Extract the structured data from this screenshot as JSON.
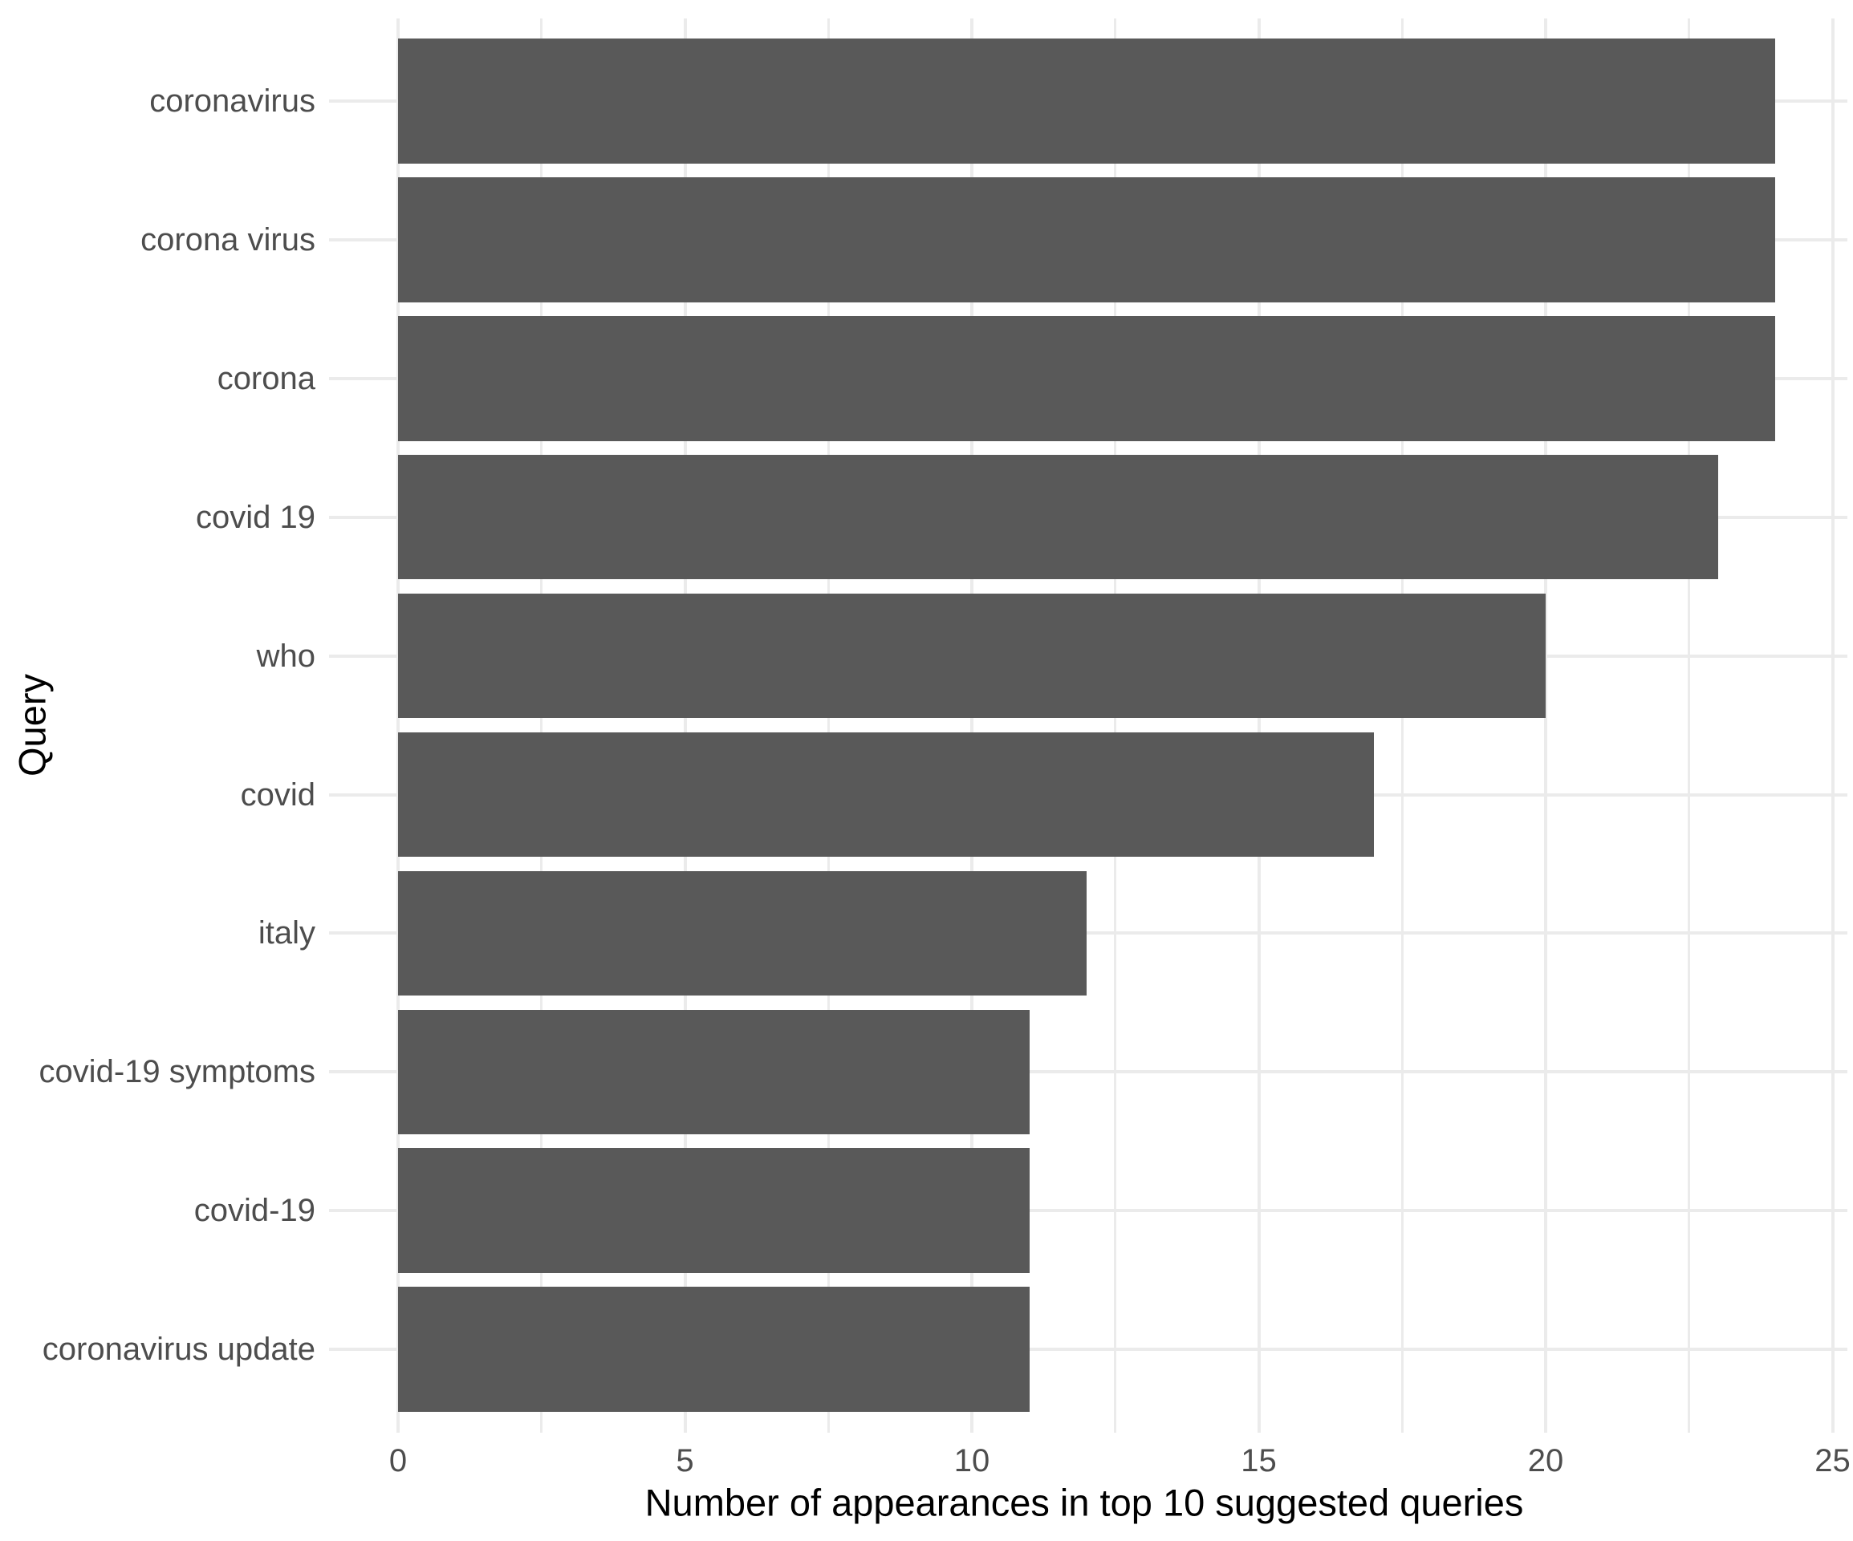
{
  "chart_data": {
    "type": "bar",
    "orientation": "horizontal",
    "title": "",
    "xlabel": "Number of appearances in top 10 suggested queries",
    "ylabel": "Query",
    "categories": [
      "coronavirus",
      "corona virus",
      "corona",
      "covid 19",
      "who",
      "covid",
      "italy",
      "covid-19 symptoms",
      "covid-19",
      "coronavirus update"
    ],
    "values": [
      24,
      24,
      24,
      23,
      20,
      17,
      12,
      11,
      11,
      11
    ],
    "x_ticks": [
      0,
      5,
      10,
      15,
      20,
      25
    ],
    "x_minor_ticks": [
      2.5,
      7.5,
      12.5,
      17.5,
      22.5
    ],
    "xlim": [
      0,
      25
    ],
    "grid": "vertical major+minor, horizontal major at category centers",
    "legend_position": "none",
    "colors": {
      "bar": "#595959",
      "grid": "#EBEBEB",
      "tick_label": "#4D4D4D",
      "axis_title": "#000000",
      "background": "#FFFFFF"
    }
  }
}
